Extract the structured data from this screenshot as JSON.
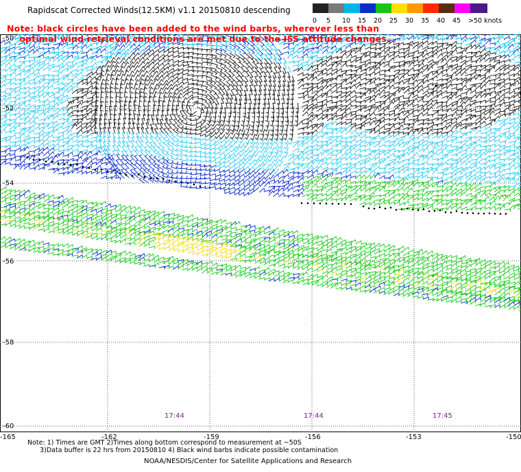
{
  "title": "Rapidscat Corrected Winds(12.5KM) v1.1 20150810 descending",
  "note_line1": "Note: black circles have been added to the wind barbs, wherever less than",
  "note_line2": "    optimal wind retrieval conditions are met due to the ISS attitude changes.",
  "colorbar": {
    "labels": [
      "0",
      "5",
      "10",
      "15",
      "20",
      "25",
      "30",
      "35",
      "40",
      "45",
      ">50 knots"
    ],
    "colors": [
      "#222222",
      "#7a7a7a",
      "#00b7e8",
      "#0a2dcc",
      "#18c418",
      "#ffe000",
      "#ff9900",
      "#ff2a00",
      "#5a2d10",
      "#ff00ff",
      "#4a1a8a"
    ]
  },
  "lat_labels": [
    "-50",
    "-52",
    "-54",
    "-56",
    "-58",
    "-60"
  ],
  "lon_labels": [
    "-165",
    "-162",
    "-159",
    "-156",
    "-153",
    "-150"
  ],
  "time_labels": [
    "17:44",
    "17:44",
    "17:45"
  ],
  "footnote_line1": "Note: 1) Times are GMT 2)Times along bottom correspond to measurement at ~50S",
  "footnote_line2": "      3)Data buffer is 22 hrs from 20150810 4) Black wind barbs indicate possible contamination",
  "credit": "NOAA/NESDIS/Center for Satellite Applications and Research"
}
